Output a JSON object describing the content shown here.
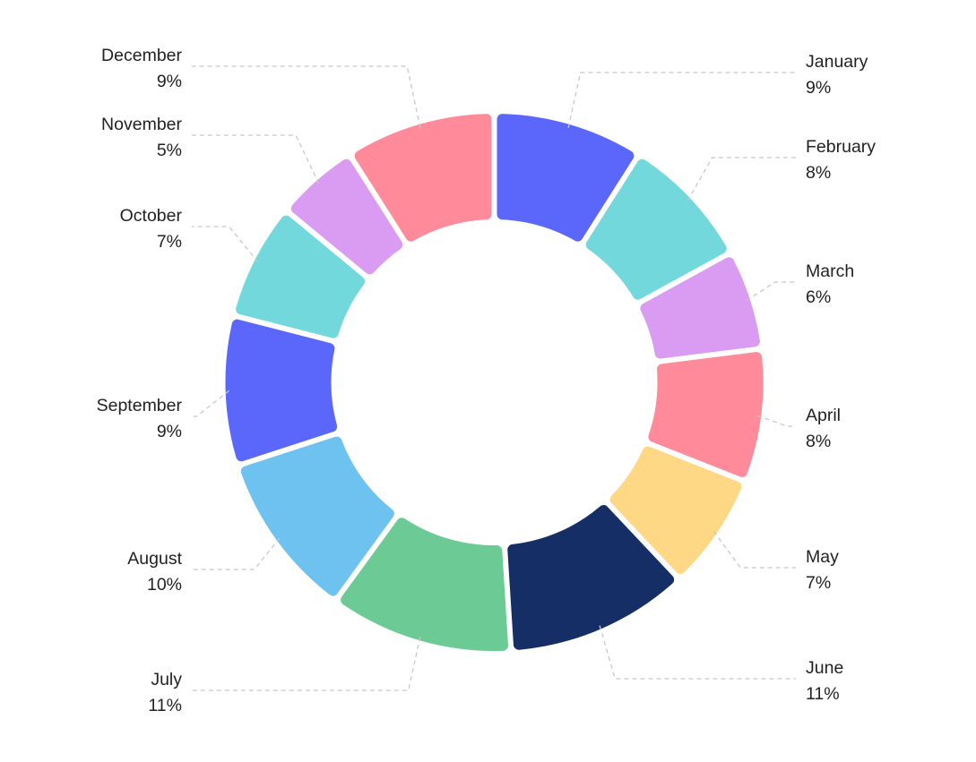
{
  "chart_data": {
    "type": "pie",
    "donut": true,
    "categories": [
      "January",
      "February",
      "March",
      "April",
      "May",
      "June",
      "July",
      "August",
      "September",
      "October",
      "November",
      "December"
    ],
    "values": [
      9,
      8,
      6,
      8,
      7,
      11,
      11,
      10,
      9,
      7,
      5,
      9
    ],
    "value_labels": [
      "9%",
      "8%",
      "6%",
      "8%",
      "7%",
      "11%",
      "11%",
      "10%",
      "9%",
      "7%",
      "5%",
      "9%"
    ],
    "colors": [
      "#5b67fb",
      "#72d8db",
      "#d99cf2",
      "#ff8a9a",
      "#ffd886",
      "#152e65",
      "#6ccb94",
      "#6dc2f0",
      "#5b67fb",
      "#72d8db",
      "#d99cf2",
      "#ff8a9a"
    ],
    "unit": "%",
    "legend": "none"
  }
}
